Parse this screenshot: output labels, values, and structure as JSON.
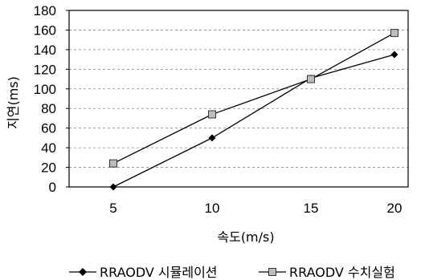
{
  "chart_data": {
    "type": "line",
    "x": [
      5,
      10,
      15,
      20
    ],
    "xlabel": "속도(m/s)",
    "ylabel": "지연(ms)",
    "ylim": [
      0,
      180
    ],
    "yticks": [
      0,
      20,
      40,
      60,
      80,
      100,
      120,
      140,
      160,
      180
    ],
    "grid": "horizontal dashed",
    "legend_position": "bottom",
    "series": [
      {
        "name": "RRAODV 시뮬레이션",
        "values": [
          0,
          50,
          111,
          135
        ],
        "marker": "diamond",
        "color": "#000000"
      },
      {
        "name": "RRAODV 수치실험",
        "values": [
          24,
          74,
          110,
          157
        ],
        "marker": "square",
        "color": "#555555"
      }
    ]
  }
}
